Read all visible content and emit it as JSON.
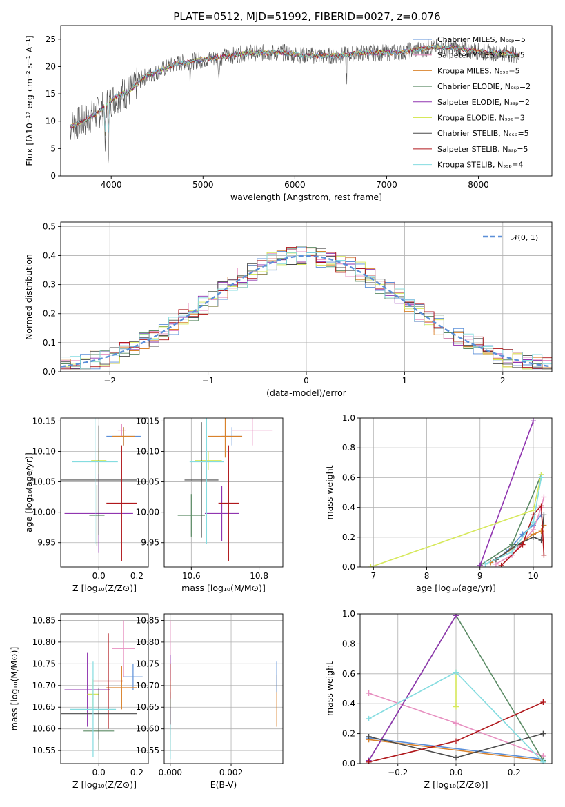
{
  "chart_data": [
    {
      "type": "line",
      "title": "PLATE=0512, MJD=51992, FIBERID=0027, z=0.076",
      "xlabel": "wavelength [Angstrom, rest frame]",
      "ylabel": "Flux [fλ10⁻¹⁷ erg cm⁻² s⁻¹ A⁻¹]",
      "xlim": [
        3450,
        8800
      ],
      "ylim": [
        0,
        27.5
      ],
      "xticks": [
        "4000",
        "5000",
        "6000",
        "7000",
        "8000"
      ],
      "yticks": [
        "0",
        "5",
        "10",
        "15",
        "20",
        "25"
      ],
      "grid": false,
      "legend_position": "top-right",
      "continuum": [
        [
          3550,
          9
        ],
        [
          3700,
          10
        ],
        [
          3850,
          11.5
        ],
        [
          3950,
          13
        ],
        [
          4050,
          14.5
        ],
        [
          4200,
          15.5
        ],
        [
          4350,
          18
        ],
        [
          4500,
          19
        ],
        [
          4700,
          20.5
        ],
        [
          4900,
          21
        ],
        [
          5100,
          21.5
        ],
        [
          5300,
          22
        ],
        [
          5500,
          22.5
        ],
        [
          5700,
          22.5
        ],
        [
          5900,
          22.5
        ],
        [
          6100,
          22
        ],
        [
          6300,
          22
        ],
        [
          6500,
          22
        ],
        [
          6700,
          22.5
        ],
        [
          6900,
          22.5
        ],
        [
          7100,
          22.5
        ],
        [
          7300,
          23
        ],
        [
          7500,
          23.5
        ],
        [
          7700,
          23.5
        ],
        [
          7900,
          23
        ],
        [
          8100,
          22.5
        ],
        [
          8300,
          22.5
        ],
        [
          8450,
          22
        ]
      ],
      "series": [
        {
          "name": "Chabrier MILES, N_SSP=5"
        },
        {
          "name": "Salpeter MILES, N_SSP=5"
        },
        {
          "name": "Kroupa MILES, N_SSP=5"
        },
        {
          "name": "Chabrier ELODIE, N_SSP=2"
        },
        {
          "name": "Salpeter ELODIE, N_SSP=2"
        },
        {
          "name": "Kroupa ELODIE, N_SSP=3"
        },
        {
          "name": "Chabrier STELIB, N_SSP=5"
        },
        {
          "name": "Salpeter STELIB, N_SSP=5"
        },
        {
          "name": "Kroupa STELIB, N_SSP=4"
        }
      ]
    },
    {
      "type": "line",
      "xlabel": "(data-model)/error",
      "ylabel": "Normed distribution",
      "xlim": [
        -2.5,
        2.5
      ],
      "ylim": [
        0,
        0.515
      ],
      "xticks": [
        "−2",
        "−1",
        "0",
        "1",
        "2"
      ],
      "yticks": [
        "0.0",
        "0.1",
        "0.2",
        "0.3",
        "0.4",
        "0.5"
      ],
      "grid": true,
      "legend_position": "top-right",
      "reference_curve": "𝒩(0, 1)",
      "bin_width": 0.1
    },
    {
      "type": "scatter",
      "xlabel": "Z [log₁₀(Z/Z⊙)]",
      "ylabel": "age  [log₁₀(age/yr)]",
      "xlim": [
        -0.2,
        0.26
      ],
      "ylim": [
        9.91,
        10.155
      ],
      "xticks": [
        "0.0",
        "0.2"
      ],
      "yticks": [
        "9.95",
        "10.00",
        "10.05",
        "10.10",
        "10.15"
      ],
      "grid": true,
      "points": [
        {
          "series": 0,
          "x": 0.13,
          "y": 10.125,
          "xerr": 0.09,
          "yerr": 0.015
        },
        {
          "series": 1,
          "x": 0.12,
          "y": 10.135,
          "xerr": 0.02,
          "yerr": 0.01
        },
        {
          "series": 2,
          "x": 0.13,
          "y": 10.125,
          "xerr": 0.06,
          "yerr": 0.015
        },
        {
          "series": 3,
          "x": -0.01,
          "y": 9.995,
          "xerr": 0.04,
          "yerr": 0.05
        },
        {
          "series": 4,
          "x": 0.0,
          "y": 9.998,
          "xerr": 0.18,
          "yerr": 0.065
        },
        {
          "series": 5,
          "x": 0.0,
          "y": 10.085,
          "xerr": 0.04,
          "yerr": 0.02
        },
        {
          "series": 6,
          "x": 0.0,
          "y": 10.053,
          "xerr": 0.2,
          "yerr": 0.09
        },
        {
          "series": 7,
          "x": 0.12,
          "y": 10.015,
          "xerr": 0.08,
          "yerr": 0.095
        },
        {
          "series": 8,
          "x": -0.02,
          "y": 10.083,
          "xerr": 0.12,
          "yerr": 0.135
        }
      ]
    },
    {
      "type": "scatter",
      "xlabel": "mass [log₁₀(M/M⊙)]",
      "xlim": [
        10.52,
        10.87
      ],
      "ylim": [
        9.91,
        10.155
      ],
      "xticks": [
        "10.6",
        "10.8"
      ],
      "yticks": [
        "9.95",
        "10.00",
        "10.05",
        "10.10",
        "10.15"
      ],
      "grid": true,
      "points": [
        {
          "series": 0,
          "x": 10.72,
          "y": 10.125,
          "xerr": 0.03,
          "yerr": 0.015
        },
        {
          "series": 1,
          "x": 10.78,
          "y": 10.135,
          "xerr": 0.06,
          "yerr": 0.025
        },
        {
          "series": 2,
          "x": 10.7,
          "y": 10.125,
          "xerr": 0.05,
          "yerr": 0.035
        },
        {
          "series": 3,
          "x": 10.6,
          "y": 9.995,
          "xerr": 0.04,
          "yerr": 0.035
        },
        {
          "series": 4,
          "x": 10.69,
          "y": 9.998,
          "xerr": 0.05,
          "yerr": 0.045
        },
        {
          "series": 5,
          "x": 10.65,
          "y": 10.085,
          "xerr": 0.04,
          "yerr": 0.015
        },
        {
          "series": 6,
          "x": 10.63,
          "y": 10.053,
          "xerr": 0.05,
          "yerr": 0.095
        },
        {
          "series": 7,
          "x": 10.71,
          "y": 10.015,
          "xerr": 0.03,
          "yerr": 0.095
        },
        {
          "series": 8,
          "x": 10.645,
          "y": 10.083,
          "xerr": 0.05,
          "yerr": 0.135
        }
      ]
    },
    {
      "type": "line",
      "xlabel": "age  [log₁₀(age/yr)]",
      "ylabel": "mass weight",
      "xlim": [
        6.75,
        10.35
      ],
      "ylim": [
        0,
        1
      ],
      "xticks": [
        "7",
        "8",
        "9",
        "10"
      ],
      "yticks": [
        "0.0",
        "0.2",
        "0.4",
        "0.6",
        "0.8",
        "1.0"
      ],
      "grid": true,
      "series": [
        {
          "series": 0,
          "x": [
            9.2,
            9.5,
            9.8,
            10.0,
            10.15
          ],
          "y": [
            0.03,
            0.1,
            0.22,
            0.28,
            0.35
          ]
        },
        {
          "series": 1,
          "x": [
            9.3,
            9.6,
            10.0,
            10.15,
            10.2
          ],
          "y": [
            0.02,
            0.08,
            0.25,
            0.4,
            0.47
          ]
        },
        {
          "series": 2,
          "x": [
            9.2,
            9.6,
            10.0,
            10.15,
            10.2
          ],
          "y": [
            0.03,
            0.12,
            0.22,
            0.24,
            0.28
          ]
        },
        {
          "series": 3,
          "x": [
            9.0,
            9.6,
            10.15
          ],
          "y": [
            0.01,
            0.15,
            0.62
          ]
        },
        {
          "series": 4,
          "x": [
            9.0,
            10.0
          ],
          "y": [
            0.01,
            0.98
          ]
        },
        {
          "series": 5,
          "x": [
            6.95,
            10.0,
            10.15
          ],
          "y": [
            0.0,
            0.38,
            0.62
          ]
        },
        {
          "series": 6,
          "x": [
            9.3,
            9.7,
            10.0,
            10.15,
            10.2
          ],
          "y": [
            0.05,
            0.15,
            0.2,
            0.18,
            0.35
          ]
        },
        {
          "series": 7,
          "x": [
            9.4,
            9.8,
            10.0,
            10.15,
            10.2
          ],
          "y": [
            0.01,
            0.15,
            0.35,
            0.41,
            0.08
          ]
        },
        {
          "series": 8,
          "x": [
            9.1,
            9.6,
            10.0,
            10.15
          ],
          "y": [
            0.02,
            0.1,
            0.3,
            0.6
          ]
        }
      ]
    },
    {
      "type": "scatter",
      "xlabel": "Z [log₁₀(Z/Z⊙)]",
      "ylabel": "mass [log₁₀(M/M⊙)]",
      "xlim": [
        -0.2,
        0.26
      ],
      "ylim": [
        10.52,
        10.865
      ],
      "xticks": [
        "0.0",
        "0.2"
      ],
      "yticks": [
        "10.55",
        "10.60",
        "10.65",
        "10.70",
        "10.75",
        "10.80",
        "10.85"
      ],
      "grid": true,
      "points": [
        {
          "series": 0,
          "x": 0.18,
          "y": 10.72,
          "xerr": 0.05,
          "yerr": 0.03
        },
        {
          "series": 1,
          "x": 0.13,
          "y": 10.785,
          "xerr": 0.06,
          "yerr": 0.065
        },
        {
          "series": 2,
          "x": 0.12,
          "y": 10.695,
          "xerr": 0.08,
          "yerr": 0.05
        },
        {
          "series": 3,
          "x": 0.0,
          "y": 10.595,
          "xerr": 0.08,
          "yerr": 0.045
        },
        {
          "series": 4,
          "x": -0.06,
          "y": 10.69,
          "xerr": 0.12,
          "yerr": 0.085
        },
        {
          "series": 5,
          "x": -0.03,
          "y": 10.68,
          "xerr": 0.03,
          "yerr": 0.035
        },
        {
          "series": 6,
          "x": 0.0,
          "y": 10.635,
          "xerr": 0.2,
          "yerr": 0.06
        },
        {
          "series": 7,
          "x": 0.05,
          "y": 10.71,
          "xerr": 0.08,
          "yerr": 0.11
        },
        {
          "series": 8,
          "x": -0.03,
          "y": 10.645,
          "xerr": 0.12,
          "yerr": 0.11
        }
      ]
    },
    {
      "type": "scatter",
      "xlabel": "E(B-V)",
      "xlim": [
        -0.0002,
        0.0037
      ],
      "ylim": [
        10.52,
        10.865
      ],
      "xticks": [
        "0.000",
        "0.002"
      ],
      "yticks": [
        "10.55",
        "10.60",
        "10.65",
        "10.70",
        "10.75",
        "10.80",
        "10.85"
      ],
      "grid": true,
      "points": [
        {
          "series": 0,
          "x": 0.0,
          "y": 10.6,
          "yerr": 0.03
        },
        {
          "series": 1,
          "x": 0.0,
          "y": 10.79,
          "yerr": 0.06
        },
        {
          "series": 2,
          "x": 0.0035,
          "y": 10.665,
          "yerr": 0.06
        },
        {
          "series": 3,
          "x": 0.0,
          "y": 10.595,
          "yerr": 0.045
        },
        {
          "series": 4,
          "x": 0.0,
          "y": 10.69,
          "yerr": 0.08
        },
        {
          "series": 5,
          "x": 0.0,
          "y": 10.68,
          "yerr": 0.03
        },
        {
          "series": 6,
          "x": 0.0,
          "y": 10.635,
          "yerr": 0.05
        },
        {
          "series": 7,
          "x": 0.0,
          "y": 10.71,
          "yerr": 0.04
        },
        {
          "series": 8,
          "x": 0.0,
          "y": 10.57,
          "yerr": 0.04
        },
        {
          "series": 0,
          "x": 0.0035,
          "y": 10.72,
          "yerr": 0.035
        }
      ]
    },
    {
      "type": "line",
      "xlabel": "Z [log₁₀(Z/Z⊙)]",
      "ylabel": "mass weight",
      "xlim": [
        -0.33,
        0.33
      ],
      "ylim": [
        0,
        1
      ],
      "xticks": [
        "−0.2",
        "0.0",
        "0.2"
      ],
      "yticks": [
        "0.0",
        "0.2",
        "0.4",
        "0.6",
        "0.8",
        "1.0"
      ],
      "grid": true,
      "series": [
        {
          "series": 0,
          "x": [
            -0.3,
            0.3
          ],
          "y": [
            0.17,
            0.03
          ]
        },
        {
          "series": 1,
          "x": [
            -0.3,
            0.0,
            0.3
          ],
          "y": [
            0.47,
            0.27,
            0.05
          ]
        },
        {
          "series": 2,
          "x": [
            -0.3,
            0.3
          ],
          "y": [
            0.16,
            0.02
          ]
        },
        {
          "series": 3,
          "x": [
            -0.3,
            0.0,
            0.3
          ],
          "y": [
            0.02,
            0.99,
            0.02
          ]
        },
        {
          "series": 4,
          "x": [
            -0.3,
            0.0
          ],
          "y": [
            0.02,
            0.99
          ]
        },
        {
          "series": 5,
          "x": [
            0.0,
            0.0
          ],
          "y": [
            0.38,
            0.61
          ]
        },
        {
          "series": 6,
          "x": [
            -0.3,
            0.0,
            0.3
          ],
          "y": [
            0.18,
            0.04,
            0.2
          ]
        },
        {
          "series": 7,
          "x": [
            -0.3,
            0.0,
            0.3
          ],
          "y": [
            0.01,
            0.15,
            0.41
          ]
        },
        {
          "series": 8,
          "x": [
            -0.3,
            0.0,
            0.3
          ],
          "y": [
            0.3,
            0.61,
            0.01
          ]
        }
      ]
    }
  ],
  "series_colors": [
    "#5b8fd8",
    "#e78fc0",
    "#d9822b",
    "#5a8a64",
    "#9035b0",
    "#d6e85a",
    "#4a4a4a",
    "#b0181c",
    "#84dce0"
  ]
}
